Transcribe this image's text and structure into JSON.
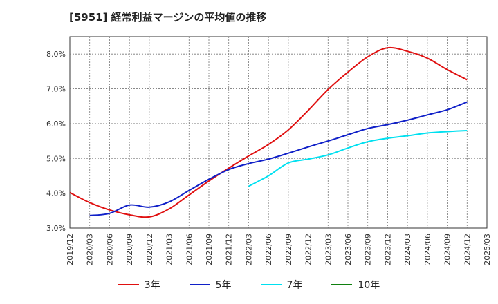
{
  "chart_data": {
    "type": "line",
    "title": "[5951]  経常利益マージンの平均値の推移",
    "x_ticks": [
      "2019/12",
      "2020/03",
      "2020/06",
      "2020/09",
      "2020/12",
      "2021/03",
      "2021/06",
      "2021/09",
      "2021/12",
      "2022/03",
      "2022/06",
      "2022/09",
      "2022/12",
      "2023/03",
      "2023/06",
      "2023/09",
      "2023/12",
      "2024/03",
      "2024/06",
      "2024/09",
      "2024/12",
      "2025/03"
    ],
    "y_ticks": [
      "3.0%",
      "4.0%",
      "5.0%",
      "6.0%",
      "7.0%",
      "8.0%"
    ],
    "ylim": [
      3.0,
      8.5
    ],
    "grid": true,
    "legend_position": "bottom",
    "series": [
      {
        "name": "3年",
        "color": "#e01010",
        "x": [
          "2019/12",
          "2020/03",
          "2020/06",
          "2020/09",
          "2020/12",
          "2021/03",
          "2021/06",
          "2021/09",
          "2021/12",
          "2022/03",
          "2022/06",
          "2022/09",
          "2022/12",
          "2023/03",
          "2023/06",
          "2023/09",
          "2023/12",
          "2024/03",
          "2024/06",
          "2024/09",
          "2024/12"
        ],
        "values": [
          4.02,
          3.73,
          3.52,
          3.38,
          3.32,
          3.55,
          3.95,
          4.35,
          4.72,
          5.07,
          5.4,
          5.82,
          6.38,
          6.98,
          7.48,
          7.92,
          8.18,
          8.08,
          7.88,
          7.55,
          7.26
        ]
      },
      {
        "name": "5年",
        "color": "#1020c8",
        "x": [
          "2020/03",
          "2020/06",
          "2020/09",
          "2020/12",
          "2021/03",
          "2021/06",
          "2021/09",
          "2021/12",
          "2022/03",
          "2022/06",
          "2022/09",
          "2022/12",
          "2023/03",
          "2023/06",
          "2023/09",
          "2023/12",
          "2024/03",
          "2024/06",
          "2024/09",
          "2024/12"
        ],
        "values": [
          3.36,
          3.42,
          3.66,
          3.6,
          3.75,
          4.08,
          4.4,
          4.68,
          4.85,
          4.98,
          5.15,
          5.33,
          5.5,
          5.68,
          5.86,
          5.97,
          6.1,
          6.25,
          6.4,
          6.62
        ]
      },
      {
        "name": "7年",
        "color": "#00e0f0",
        "x": [
          "2022/03",
          "2022/06",
          "2022/09",
          "2022/12",
          "2023/03",
          "2023/06",
          "2023/09",
          "2023/12",
          "2024/03",
          "2024/06",
          "2024/09",
          "2024/12"
        ],
        "values": [
          4.2,
          4.5,
          4.87,
          4.98,
          5.1,
          5.3,
          5.48,
          5.58,
          5.65,
          5.73,
          5.77,
          5.8
        ]
      },
      {
        "name": "10年",
        "color": "#108010",
        "x": [],
        "values": []
      }
    ]
  }
}
